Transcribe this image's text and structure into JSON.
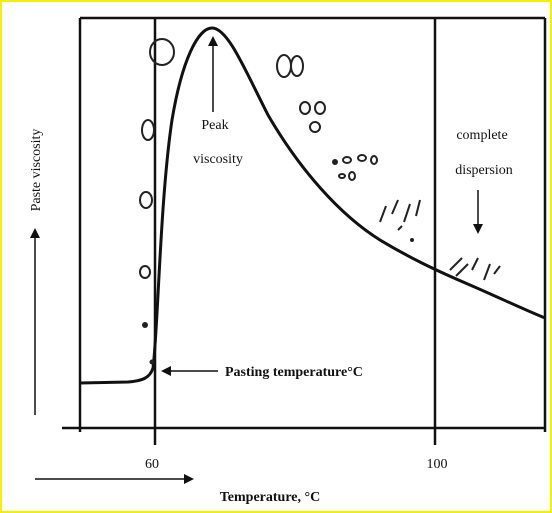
{
  "diagram": {
    "y_axis_label": "Paste viscosity",
    "x_axis_label": "Temperature, °C",
    "x_tick_labels": [
      "60",
      "100"
    ],
    "annotations": {
      "peak": [
        "Peak",
        "viscosity"
      ],
      "dispersion": [
        "complete",
        "dispersion"
      ],
      "pasting": "Pasting temperature°C"
    }
  }
}
